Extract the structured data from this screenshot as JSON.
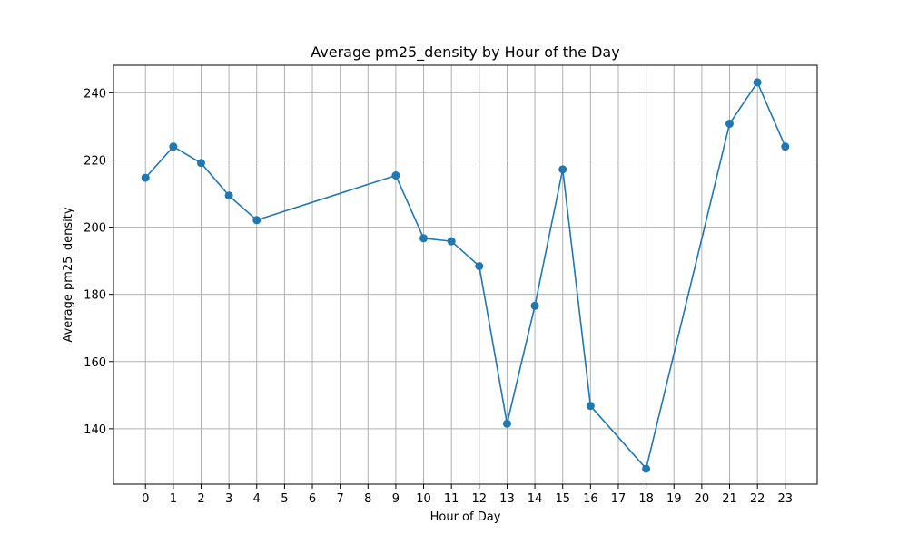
{
  "chart_data": {
    "type": "line",
    "title": "Average pm25_density by Hour of the Day",
    "xlabel": "Hour of Day",
    "ylabel": "Average pm25_density",
    "xlim": [
      -1.15,
      24.15
    ],
    "ylim": [
      123.5,
      248.2
    ],
    "x_ticks": [
      0,
      1,
      2,
      3,
      4,
      5,
      6,
      7,
      8,
      9,
      10,
      11,
      12,
      13,
      14,
      15,
      16,
      17,
      18,
      19,
      20,
      21,
      22,
      23
    ],
    "y_ticks": [
      140,
      160,
      180,
      200,
      220,
      240
    ],
    "grid": true,
    "color": "#1f77b4",
    "marker": "circle",
    "x": [
      0,
      1,
      2,
      3,
      4,
      9,
      10,
      11,
      12,
      13,
      14,
      15,
      16,
      18,
      21,
      22,
      23
    ],
    "y": [
      214.7,
      224.0,
      219.1,
      209.4,
      202.1,
      215.4,
      196.7,
      195.8,
      188.4,
      141.5,
      176.6,
      217.2,
      146.8,
      128.1,
      230.8,
      243.1,
      224.0
    ]
  }
}
